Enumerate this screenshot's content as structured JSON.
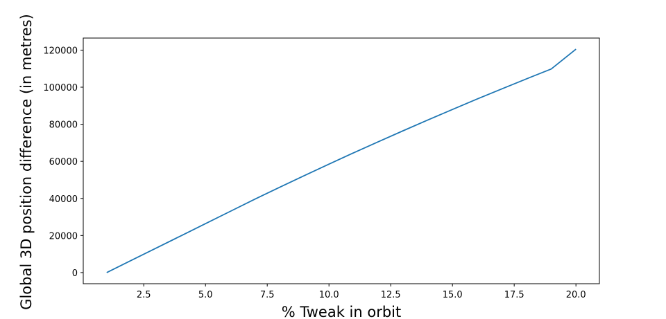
{
  "chart_data": {
    "type": "line",
    "title": "",
    "xlabel": "% Tweak in orbit",
    "ylabel": "Global 3D position difference (in metres)",
    "xlim": [
      0.05,
      20.95
    ],
    "ylim": [
      -6000,
      126500
    ],
    "x_ticks": [
      2.5,
      5.0,
      7.5,
      10.0,
      12.5,
      15.0,
      17.5,
      20.0
    ],
    "x_tick_labels": [
      "2.5",
      "5.0",
      "7.5",
      "10.0",
      "12.5",
      "15.0",
      "17.5",
      "20.0"
    ],
    "y_ticks": [
      0,
      20000,
      40000,
      60000,
      80000,
      100000,
      120000
    ],
    "y_tick_labels": [
      "0",
      "20000",
      "40000",
      "60000",
      "80000",
      "100000",
      "120000"
    ],
    "grid": false,
    "series": [
      {
        "color": "#1f77b4",
        "x": [
          1,
          2,
          3,
          4,
          5,
          6,
          7,
          8,
          9,
          10,
          11,
          12,
          13,
          14,
          15,
          16,
          17,
          18,
          19,
          20
        ],
        "y": [
          0,
          6600,
          13200,
          19800,
          26400,
          33000,
          39600,
          46000,
          52300,
          58500,
          64600,
          70600,
          76500,
          82300,
          88000,
          93600,
          99100,
          104500,
          109800,
          120500
        ]
      }
    ]
  }
}
